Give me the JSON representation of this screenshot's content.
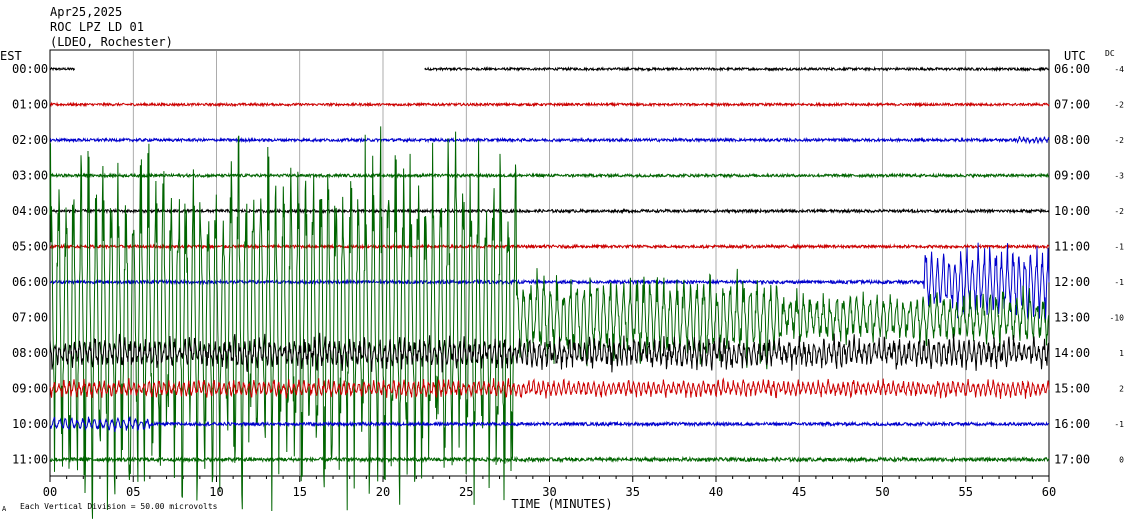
{
  "chart_data": {
    "type": "line",
    "title_lines": [
      "Apr25,2025",
      "ROC LPZ LD 01",
      "(LDEO, Rochester)"
    ],
    "left_axis_label": "EST",
    "right_axis_label": "UTC",
    "dc_label": "DC",
    "xlabel": "TIME (MINUTES)",
    "x_ticks": [
      "00",
      "05",
      "10",
      "15",
      "20",
      "25",
      "30",
      "35",
      "40",
      "45",
      "50",
      "55",
      "60"
    ],
    "xlim": [
      0,
      60
    ],
    "footer_note": "Each Vertical Division =   50.00 microvolts",
    "footer_mark": "A",
    "grid": true,
    "trace_colors": [
      "#000000",
      "#cc0000",
      "#0000cc",
      "#006400"
    ],
    "rows": [
      {
        "est": "00:00",
        "utc": "06:00",
        "dc": "-4",
        "noise": 1.2,
        "gap": [
          1.5,
          22.5
        ],
        "bursts": []
      },
      {
        "est": "01:00",
        "utc": "07:00",
        "dc": "-2",
        "noise": 1.2,
        "bursts": []
      },
      {
        "est": "02:00",
        "utc": "08:00",
        "dc": "-2",
        "noise": 1.4,
        "bursts": [
          {
            "start": 58,
            "end": 60,
            "amp": 3,
            "period": 0.25
          }
        ]
      },
      {
        "est": "03:00",
        "utc": "09:00",
        "dc": "-3",
        "noise": 1.4,
        "bursts": []
      },
      {
        "est": "04:00",
        "utc": "10:00",
        "dc": "-2",
        "noise": 1.4,
        "bursts": []
      },
      {
        "est": "05:00",
        "utc": "11:00",
        "dc": "-1",
        "noise": 1.4,
        "bursts": []
      },
      {
        "est": "06:00",
        "utc": "12:00",
        "dc": "-1",
        "noise": 1.6,
        "bursts": [
          {
            "start": 52.5,
            "end": 60,
            "amp": 40,
            "period": 0.35
          }
        ]
      },
      {
        "est": "07:00",
        "utc": "13:00",
        "dc": "-10",
        "noise": 6,
        "bursts": [
          {
            "start": 0,
            "end": 28,
            "amp": 200,
            "period": 0.45
          },
          {
            "start": 28,
            "end": 44,
            "amp": 48,
            "period": 0.4
          },
          {
            "start": 44,
            "end": 60,
            "amp": 28,
            "period": 0.4
          }
        ]
      },
      {
        "est": "08:00",
        "utc": "14:00",
        "dc": "1",
        "noise": 6,
        "bursts": [
          {
            "start": 0,
            "end": 60,
            "amp": 15,
            "period": 0.3
          }
        ]
      },
      {
        "est": "09:00",
        "utc": "15:00",
        "dc": "2",
        "noise": 2,
        "bursts": [
          {
            "start": 0,
            "end": 60,
            "amp": 9,
            "period": 0.3
          }
        ]
      },
      {
        "est": "10:00",
        "utc": "16:00",
        "dc": "-1",
        "noise": 1.6,
        "bursts": [
          {
            "start": 0,
            "end": 6,
            "amp": 7,
            "period": 0.35
          }
        ]
      },
      {
        "est": "11:00",
        "utc": "17:00",
        "dc": "0",
        "noise": 1.8,
        "bursts": []
      }
    ]
  }
}
